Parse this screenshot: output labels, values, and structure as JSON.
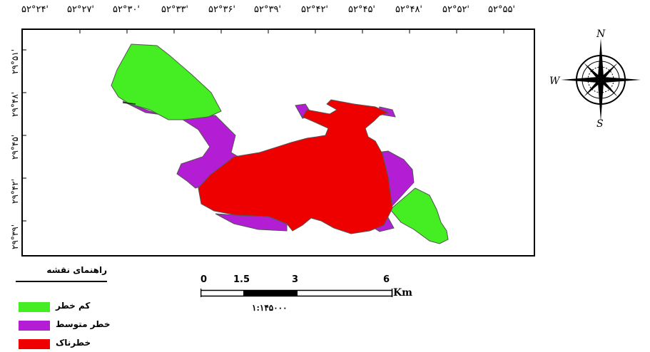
{
  "top_ticks": [
    "۵۲°۲۴'",
    "۵۲°۲۷'",
    "۵۲°۳۰'",
    "۵۲°۳۳'",
    "۵۲°۳۶'",
    "۵۲°۳۹'",
    "۵۲°۴۲'",
    "۵۲°۴۵'",
    "۵۲°۴۸'",
    "۵۲°۵۲'",
    "۵۲°۵۵'"
  ],
  "left_ticks": [
    "۲۹°۵۱'",
    "۲۹°۴۸'",
    "۲۹°۴۵'",
    "۲۹°۴۲'",
    "۲۹°۳۹'"
  ],
  "compass": {
    "north": "N",
    "south": "S",
    "west": "W"
  },
  "legend": {
    "title": "راهنمای نقشه",
    "items": [
      {
        "label": "کم خطر",
        "color": "#44ee22"
      },
      {
        "label": "خطر متوسط",
        "color": "#b31dd3"
      },
      {
        "label": "خطرناک",
        "color": "#ee0000"
      }
    ]
  },
  "scale": {
    "ticks": [
      "0",
      "1.5",
      "3",
      "6"
    ],
    "unit": "Km",
    "ratio": "۱:۱۴۵۰۰۰"
  },
  "colors": {
    "low": "#44ee22",
    "medium": "#b31dd3",
    "high": "#ee0000",
    "outline": "#555555"
  }
}
